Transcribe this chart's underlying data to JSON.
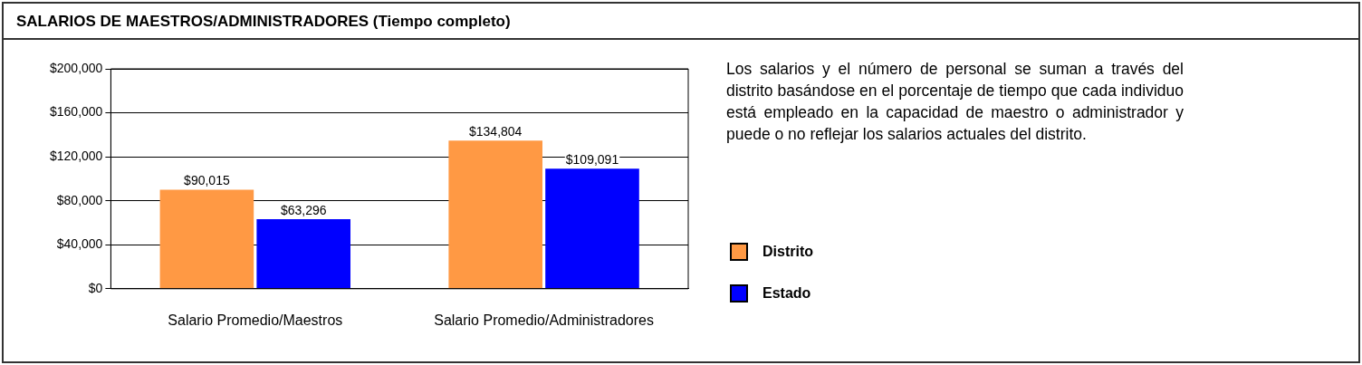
{
  "chart_data": {
    "type": "bar",
    "title": "SALARIOS DE MAESTROS/ADMINISTRADORES (Tiempo completo)",
    "categories": [
      "Salario Promedio/Maestros",
      "Salario Promedio/Administradores"
    ],
    "series": [
      {
        "name": "Distrito",
        "color": "#ff9944",
        "values": [
          90015,
          134804
        ],
        "value_labels": [
          "$90,015",
          "$134,804"
        ]
      },
      {
        "name": "Estado",
        "color": "#0000ff",
        "values": [
          63296,
          109091
        ],
        "value_labels": [
          "$63,296",
          "$109,091"
        ]
      }
    ],
    "ylim": [
      0,
      200000
    ],
    "yticks": [
      {
        "value": 0,
        "label": "$0"
      },
      {
        "value": 40000,
        "label": "$40,000"
      },
      {
        "value": 80000,
        "label": "$80,000"
      },
      {
        "value": 120000,
        "label": "$120,000"
      },
      {
        "value": 160000,
        "label": "$160,000"
      },
      {
        "value": 200000,
        "label": "$200,000"
      }
    ],
    "grid": "y",
    "legend": "right",
    "annotations": [
      "Los salarios y el número de personal se suman a través del distrito basándose en el porcentaje de tiempo que cada individuo está empleado en la capacidad de maestro o administrador y puede o no reflejar los salarios actuales del distrito."
    ]
  }
}
